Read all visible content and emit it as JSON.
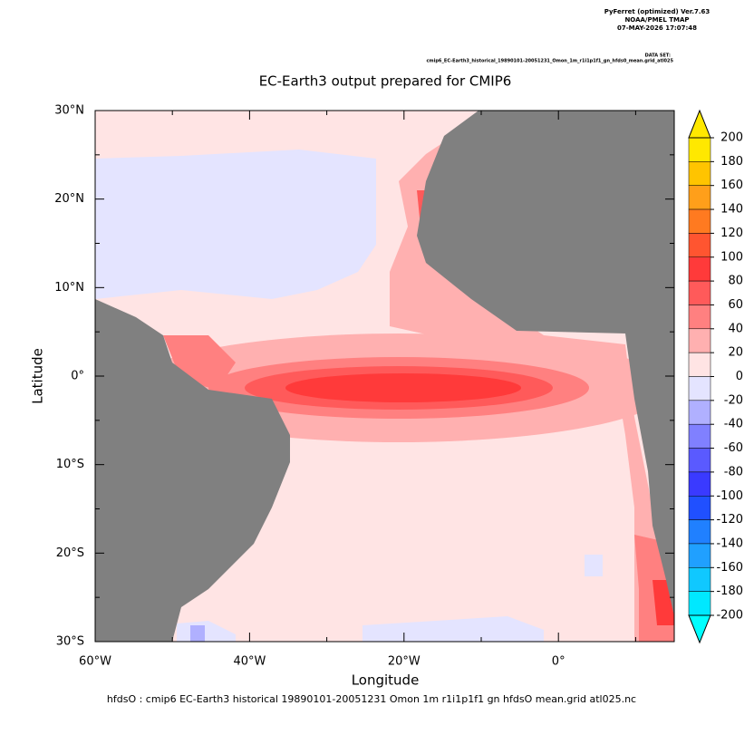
{
  "header": {
    "lines": [
      "PyFerret (optimized) Ver.7.63",
      "NOAA/PMEL TMAP",
      "07-MAY-2026 17:07:48"
    ],
    "dataset_label": "DATA SET:",
    "dataset": "cmip6_EC-Earth3_historical_19890101-20051231_Omon_1m_r1i1p1f1_gn_hfds0_mean.grid_atl025"
  },
  "chart_data": {
    "type": "map",
    "title": "EC-Earth3 output prepared for CMIP6",
    "x_label": "Longitude",
    "y_label": "Latitude",
    "footer": "hfdsO : cmip6 EC-Earth3 historical 19890101-20051231 Omon 1m r1i1p1f1 gn hfdsO mean.grid atl025.nc",
    "xlim": [
      -60,
      15
    ],
    "ylim": [
      -30,
      30
    ],
    "xticks": [
      {
        "value": -60,
        "label": "60°W"
      },
      {
        "value": -40,
        "label": "40°W"
      },
      {
        "value": -20,
        "label": "20°W"
      },
      {
        "value": 0,
        "label": "0°"
      }
    ],
    "xminorticks": [
      -50,
      -30,
      -10,
      10
    ],
    "yticks": [
      {
        "value": 30,
        "label": "30°N"
      },
      {
        "value": 20,
        "label": "20°N"
      },
      {
        "value": 10,
        "label": "10°N"
      },
      {
        "value": 0,
        "label": "0°"
      },
      {
        "value": -10,
        "label": "10°S"
      },
      {
        "value": -20,
        "label": "20°S"
      },
      {
        "value": -30,
        "label": "30°S"
      }
    ],
    "yminorticks": [
      25,
      15,
      5,
      -5,
      -15,
      -25
    ],
    "colorbar": {
      "levels": [
        200,
        180,
        160,
        140,
        120,
        100,
        80,
        60,
        40,
        20,
        0,
        -20,
        -40,
        -60,
        -80,
        -100,
        -120,
        -140,
        -160,
        -180,
        -200
      ],
      "colors": [
        "#ffe800",
        "#ffc400",
        "#ff9f1a",
        "#ff7a20",
        "#ff5530",
        "#ff3a3a",
        "#ff5a5a",
        "#ff8080",
        "#ffb0b0",
        "#ffe4e4",
        "#e4e4ff",
        "#b0b0ff",
        "#8080ff",
        "#5a5aff",
        "#3a3aff",
        "#2050ff",
        "#2080ff",
        "#20a0ff",
        "#10c8ff",
        "#00e8ff"
      ],
      "over_color": "#ffe800",
      "under_color": "#00ffff"
    }
  }
}
